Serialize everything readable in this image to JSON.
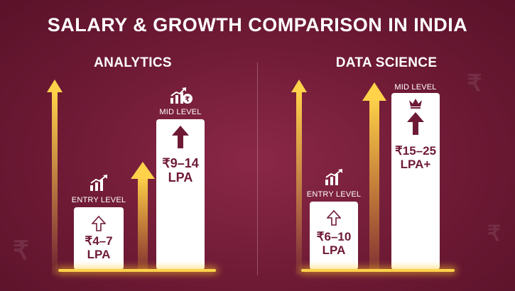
{
  "title": "SALARY & GROWTH COMPARISON IN INDIA",
  "colors": {
    "background": "#6e1a35",
    "bar": "#ffffff",
    "accent_glow": "#ffd24a",
    "text_dark": "#6e1a35"
  },
  "chart_data": [
    {
      "type": "bar",
      "title": "ANALYTICS",
      "categories": [
        "ENTRY LEVEL",
        "MID LEVEL"
      ],
      "values": [
        {
          "label": "₹4–7\nLPA",
          "min": 4,
          "max": 7
        },
        {
          "label": "₹9–14\nLPA",
          "min": 9,
          "max": 14
        }
      ],
      "unit": "LPA",
      "icons": [
        "chart-growth-icon",
        "chart-rupee-icon"
      ]
    },
    {
      "type": "bar",
      "title": "DATA SCIENCE",
      "categories": [
        "ENTRY LEVEL",
        "MID LEVEL"
      ],
      "values": [
        {
          "label": "₹6–10\nLPA",
          "min": 6,
          "max": 10
        },
        {
          "label": "₹15–25\nLPA+",
          "min": 15,
          "max": 25
        }
      ],
      "unit": "LPA",
      "icons": [
        "chart-growth-icon",
        "crown-icon"
      ]
    }
  ]
}
